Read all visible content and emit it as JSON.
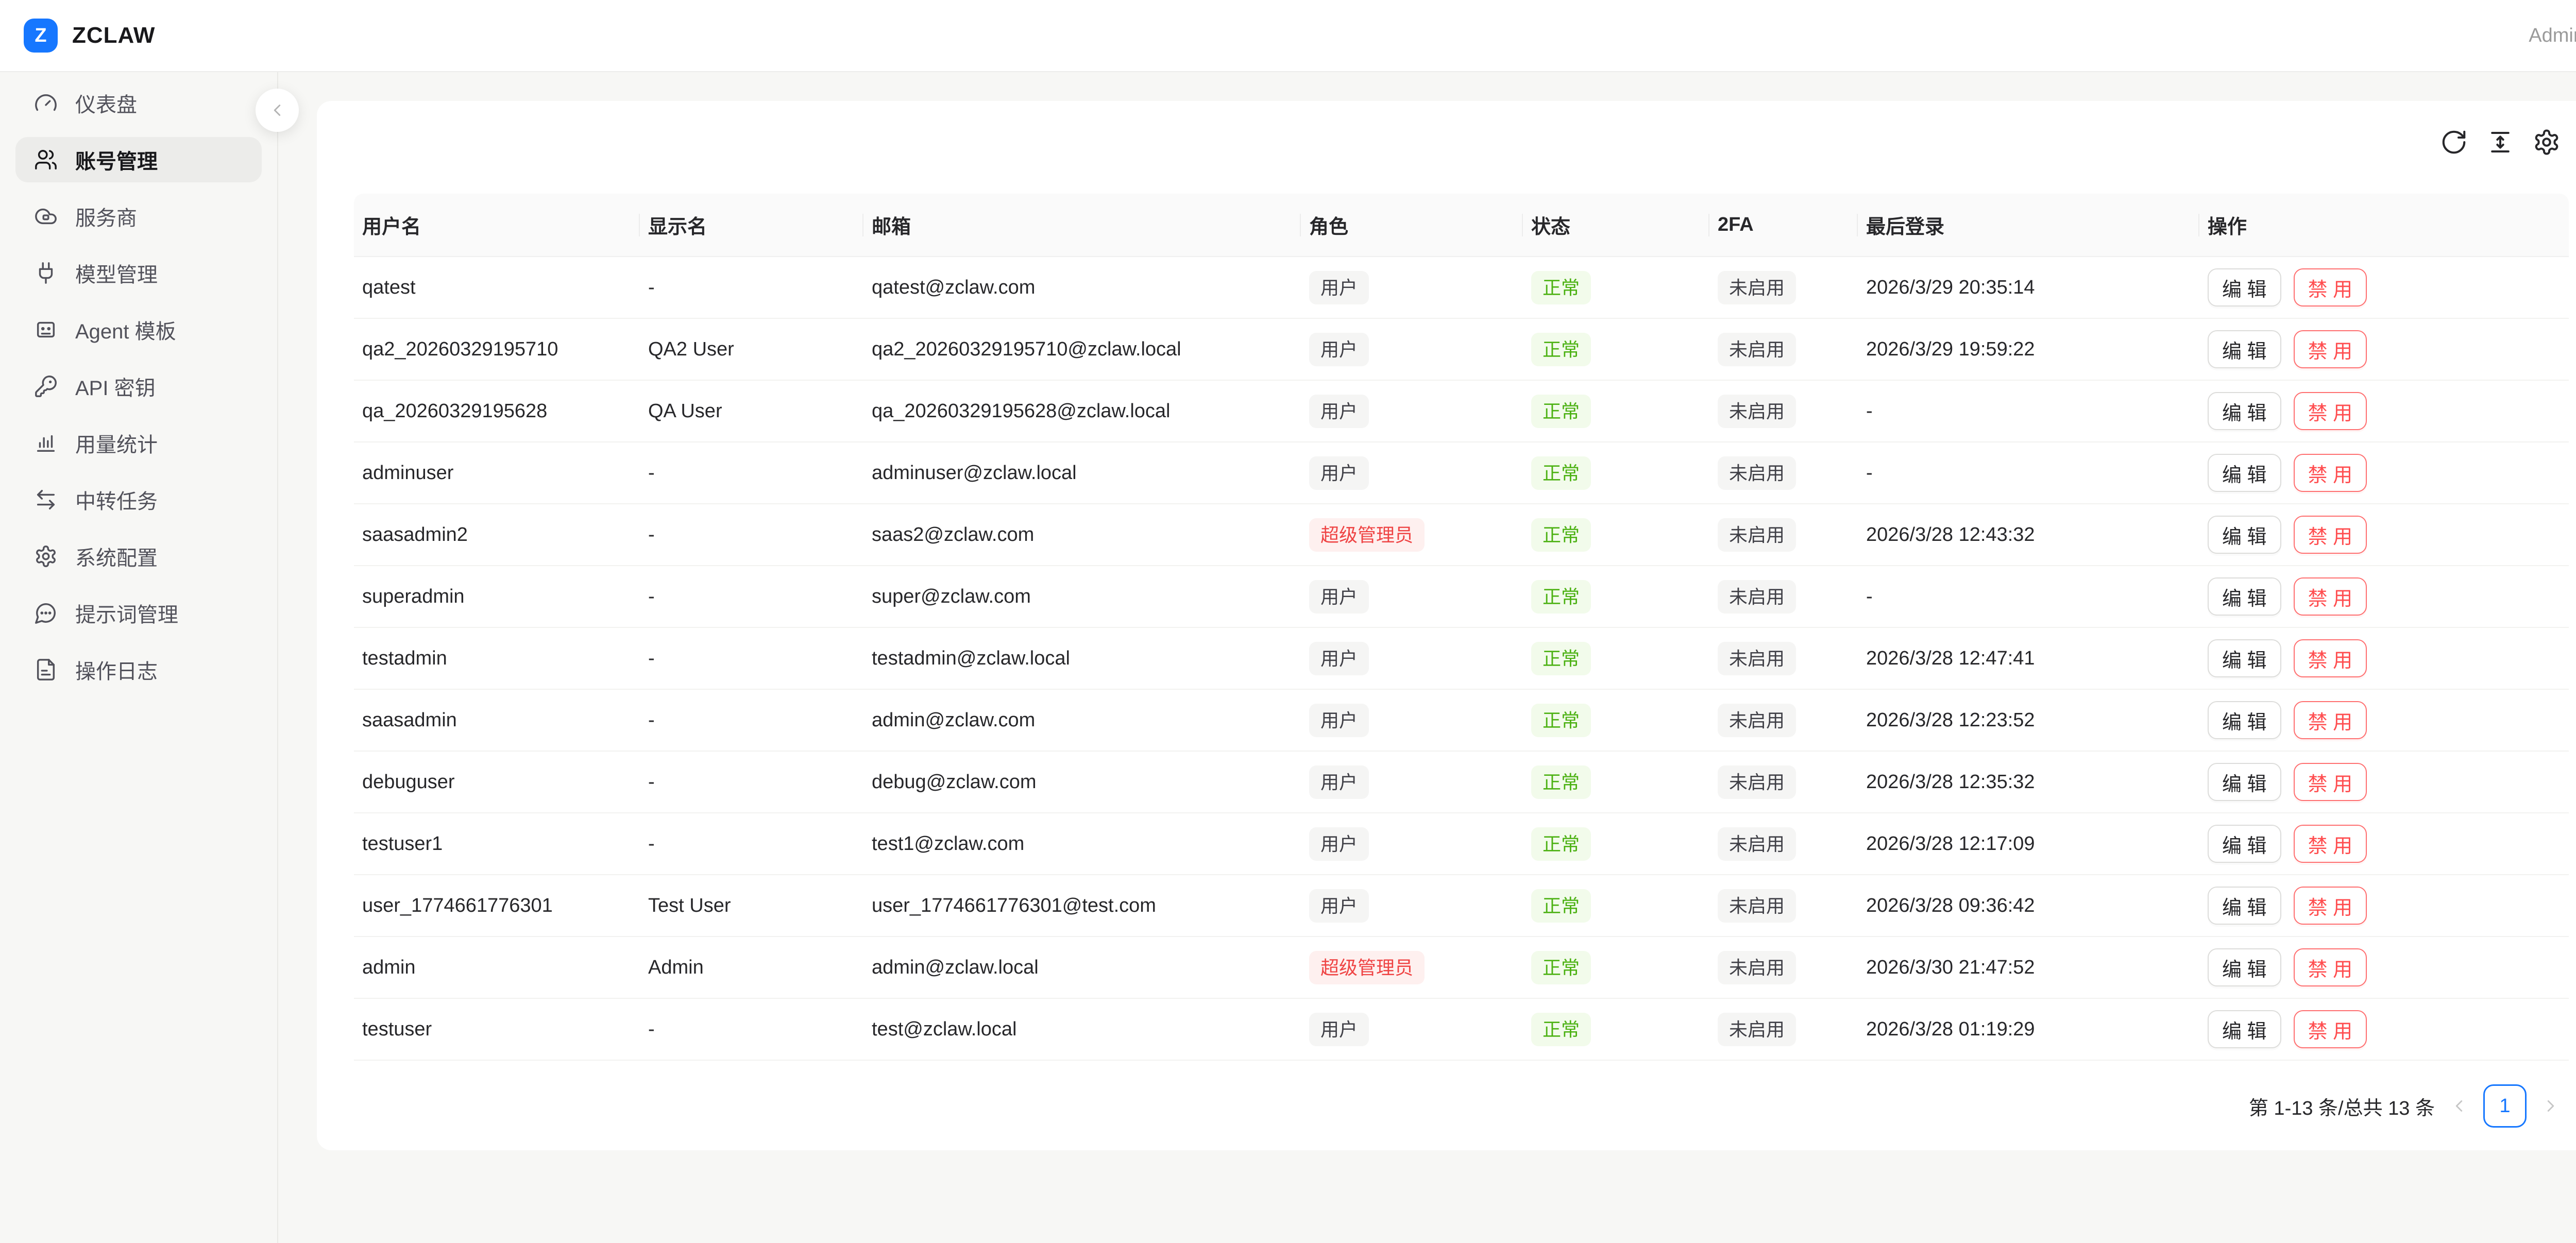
{
  "topbar": {
    "brand_initial": "Z",
    "brand": "ZCLAW",
    "user": "Admin"
  },
  "sidebar": {
    "items": [
      {
        "label": "仪表盘",
        "icon": "gauge-icon",
        "active": false
      },
      {
        "label": "账号管理",
        "icon": "users-icon",
        "active": true
      },
      {
        "label": "服务商",
        "icon": "cloud-icon",
        "active": false
      },
      {
        "label": "模型管理",
        "icon": "plug-icon",
        "active": false
      },
      {
        "label": "Agent 模板",
        "icon": "robot-icon",
        "active": false
      },
      {
        "label": "API 密钥",
        "icon": "key-icon",
        "active": false
      },
      {
        "label": "用量统计",
        "icon": "bar-chart-icon",
        "active": false
      },
      {
        "label": "中转任务",
        "icon": "transfer-icon",
        "active": false
      },
      {
        "label": "系统配置",
        "icon": "gear-icon",
        "active": false
      },
      {
        "label": "提示词管理",
        "icon": "message-icon",
        "active": false
      },
      {
        "label": "操作日志",
        "icon": "file-icon",
        "active": false
      }
    ]
  },
  "toolbar": {
    "icons": [
      "refresh-icon",
      "column-height-icon",
      "settings-icon"
    ]
  },
  "table": {
    "columns": [
      "用户名",
      "显示名",
      "邮箱",
      "角色",
      "状态",
      "2FA",
      "最后登录",
      "操作"
    ],
    "actions": {
      "edit": "编 辑",
      "disable": "禁 用"
    },
    "rows": [
      {
        "username": "qatest",
        "display_name": "-",
        "email": "qatest@zclaw.com",
        "role": "用户",
        "role_type": "user",
        "status": "正常",
        "twofa": "未启用",
        "last_login": "2026/3/29 20:35:14"
      },
      {
        "username": "qa2_20260329195710",
        "display_name": "QA2 User",
        "email": "qa2_20260329195710@zclaw.local",
        "role": "用户",
        "role_type": "user",
        "status": "正常",
        "twofa": "未启用",
        "last_login": "2026/3/29 19:59:22"
      },
      {
        "username": "qa_20260329195628",
        "display_name": "QA User",
        "email": "qa_20260329195628@zclaw.local",
        "role": "用户",
        "role_type": "user",
        "status": "正常",
        "twofa": "未启用",
        "last_login": "-"
      },
      {
        "username": "adminuser",
        "display_name": "-",
        "email": "adminuser@zclaw.local",
        "role": "用户",
        "role_type": "user",
        "status": "正常",
        "twofa": "未启用",
        "last_login": "-"
      },
      {
        "username": "saasadmin2",
        "display_name": "-",
        "email": "saas2@zclaw.com",
        "role": "超级管理员",
        "role_type": "super_admin",
        "status": "正常",
        "twofa": "未启用",
        "last_login": "2026/3/28 12:43:32"
      },
      {
        "username": "superadmin",
        "display_name": "-",
        "email": "super@zclaw.com",
        "role": "用户",
        "role_type": "user",
        "status": "正常",
        "twofa": "未启用",
        "last_login": "-"
      },
      {
        "username": "testadmin",
        "display_name": "-",
        "email": "testadmin@zclaw.local",
        "role": "用户",
        "role_type": "user",
        "status": "正常",
        "twofa": "未启用",
        "last_login": "2026/3/28 12:47:41"
      },
      {
        "username": "saasadmin",
        "display_name": "-",
        "email": "admin@zclaw.com",
        "role": "用户",
        "role_type": "user",
        "status": "正常",
        "twofa": "未启用",
        "last_login": "2026/3/28 12:23:52"
      },
      {
        "username": "debuguser",
        "display_name": "-",
        "email": "debug@zclaw.com",
        "role": "用户",
        "role_type": "user",
        "status": "正常",
        "twofa": "未启用",
        "last_login": "2026/3/28 12:35:32"
      },
      {
        "username": "testuser1",
        "display_name": "-",
        "email": "test1@zclaw.com",
        "role": "用户",
        "role_type": "user",
        "status": "正常",
        "twofa": "未启用",
        "last_login": "2026/3/28 12:17:09"
      },
      {
        "username": "user_1774661776301",
        "display_name": "Test User",
        "email": "user_1774661776301@test.com",
        "role": "用户",
        "role_type": "user",
        "status": "正常",
        "twofa": "未启用",
        "last_login": "2026/3/28 09:36:42"
      },
      {
        "username": "admin",
        "display_name": "Admin",
        "email": "admin@zclaw.local",
        "role": "超级管理员",
        "role_type": "super_admin",
        "status": "正常",
        "twofa": "未启用",
        "last_login": "2026/3/30 21:47:52"
      },
      {
        "username": "testuser",
        "display_name": "-",
        "email": "test@zclaw.local",
        "role": "用户",
        "role_type": "user",
        "status": "正常",
        "twofa": "未启用",
        "last_login": "2026/3/28 01:19:29"
      }
    ]
  },
  "pagination": {
    "summary": "第 1-13 条/总共 13 条",
    "current_page": "1"
  },
  "colors": {
    "accent": "#1677ff",
    "danger": "#ff4d4f",
    "success": "#52c41a"
  }
}
